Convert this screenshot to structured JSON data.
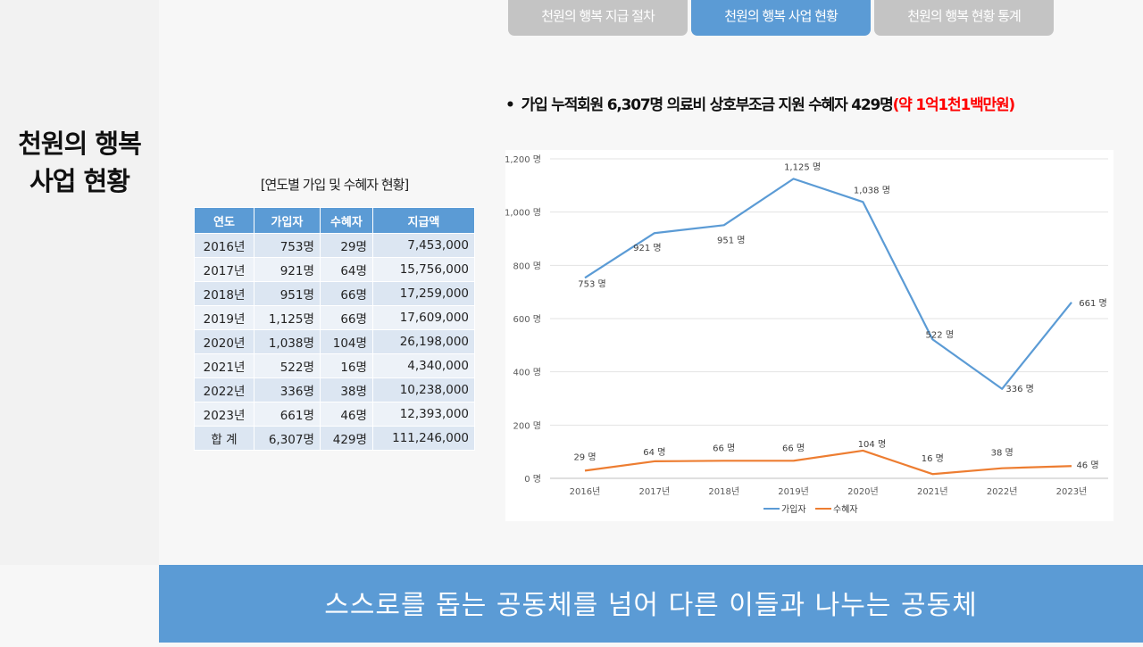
{
  "sidebar": {
    "title_line1": "천원의 행복",
    "title_line2": "사업 현황"
  },
  "tabs": [
    {
      "label": "천원의 행복 지급 절차",
      "active": false
    },
    {
      "label": "천원의 행복 사업 현황",
      "active": true
    },
    {
      "label": "천원의 행복 현황 통계",
      "active": false
    }
  ],
  "headline": {
    "bullet": "•",
    "text": "가입 누적회원 6,307명 의료비 상호부조금 지원 수혜자 429명",
    "highlight": "(약 1억1천1백만원)"
  },
  "table": {
    "caption": "[연도별 가입 및 수혜자 현황]",
    "headers": [
      "연도",
      "가입자",
      "수혜자",
      "지급액"
    ],
    "rows": [
      [
        "2016년",
        "753명",
        "29명",
        "7,453,000"
      ],
      [
        "2017년",
        "921명",
        "64명",
        "15,756,000"
      ],
      [
        "2018년",
        "951명",
        "66명",
        "17,259,000"
      ],
      [
        "2019년",
        "1,125명",
        "66명",
        "17,609,000"
      ],
      [
        "2020년",
        "1,038명",
        "104명",
        "26,198,000"
      ],
      [
        "2021년",
        "522명",
        "16명",
        "4,340,000"
      ],
      [
        "2022년",
        "336명",
        "38명",
        "10,238,000"
      ],
      [
        "2023년",
        "661명",
        "46명",
        "12,393,000"
      ],
      [
        "합 계",
        "6,307명",
        "429명",
        "111,246,000"
      ]
    ]
  },
  "chart_data": {
    "type": "line",
    "title": "",
    "xlabel": "",
    "ylabel": "",
    "categories": [
      "2016년",
      "2017년",
      "2018년",
      "2019년",
      "2020년",
      "2021년",
      "2022년",
      "2023년"
    ],
    "ylim": [
      0,
      1200
    ],
    "yticks": [
      0,
      200,
      400,
      600,
      800,
      1000,
      1200
    ],
    "ytick_labels": [
      "0 명",
      "200 명",
      "400 명",
      "600 명",
      "800 명",
      "1,000 명",
      "1,200 명"
    ],
    "grid": true,
    "legend": "bottom",
    "series": [
      {
        "name": "가입자",
        "color": "#5b9bd5",
        "values": [
          753,
          921,
          951,
          1125,
          1038,
          522,
          336,
          661
        ],
        "labels": [
          "753 명",
          "921 명",
          "951 명",
          "1,125 명",
          "1,038 명",
          "522 명",
          "336 명",
          "661 명"
        ]
      },
      {
        "name": "수혜자",
        "color": "#ed7d31",
        "values": [
          29,
          64,
          66,
          66,
          104,
          16,
          38,
          46
        ],
        "labels": [
          "29 명",
          "64 명",
          "66 명",
          "66 명",
          "104 명",
          "16 명",
          "38 명",
          "46 명"
        ]
      }
    ]
  },
  "footer": {
    "text": "스스로를 돕는 공동체를 넘어 다른 이들과 나누는 공동체"
  }
}
